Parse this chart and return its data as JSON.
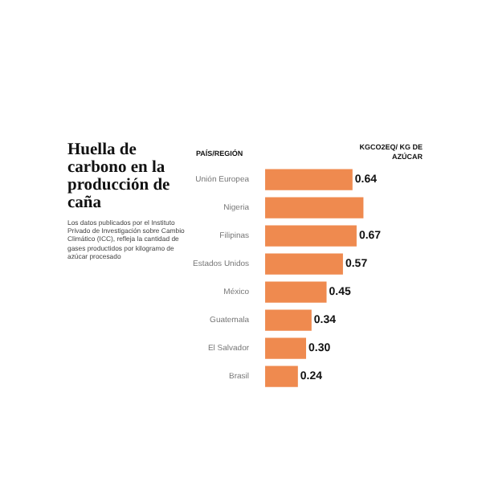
{
  "chart_data": {
    "type": "bar",
    "orientation": "horizontal",
    "title": "Huella de carbono en la producción de caña",
    "subtitle": "Los datos publicados por el Instituto Privado de Investigación sobre Cambio Climático (ICC), refleja la cantidad de gases productidos por kilogramo de azúcar procesado",
    "ylabel": "PAÍS/REGIÓN",
    "xlabel": "KGCO2EQ/ KG DE AZÚCAR",
    "categories": [
      "Unión Europea",
      "Nigeria",
      "Filipinas",
      "Estados Unidos",
      "México",
      "Guatemala",
      "El Salvador",
      "Brasil"
    ],
    "values": [
      0.64,
      0.72,
      0.67,
      0.57,
      0.45,
      0.34,
      0.3,
      0.24
    ],
    "value_labels": [
      "0.64",
      null,
      "0.67",
      "0.57",
      "0.45",
      "0.34",
      "0.30",
      "0.24"
    ],
    "color": "#ef8a4f",
    "legend": false,
    "tick_labels": "y"
  }
}
